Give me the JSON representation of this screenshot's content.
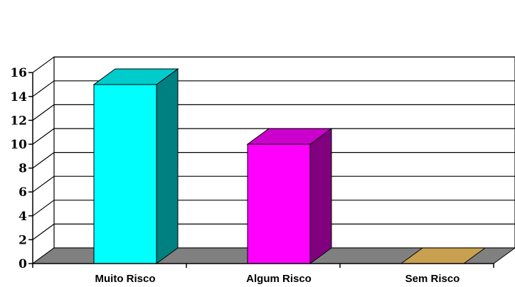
{
  "chart_data": {
    "type": "bar",
    "categories": [
      "Muito Risco",
      "Algum Risco",
      "Sem Risco"
    ],
    "values": [
      15,
      10,
      0
    ],
    "ylim": [
      0,
      16
    ],
    "yticks": [
      0,
      2,
      4,
      6,
      8,
      10,
      12,
      14,
      16
    ],
    "grid": true,
    "three_d": true,
    "xlabel": "",
    "ylabel": "",
    "title": "",
    "legend": "none",
    "colors": {
      "bars": [
        {
          "front": "#00FFFF",
          "top": "#00CCCC",
          "side": "#008080"
        },
        {
          "front": "#FF00FF",
          "top": "#CC00CC",
          "side": "#800080"
        },
        {
          "front": "#D4A050",
          "top": "#C8A050",
          "side": "#806020"
        }
      ],
      "floor": "#808080",
      "grid": "#000000"
    }
  }
}
